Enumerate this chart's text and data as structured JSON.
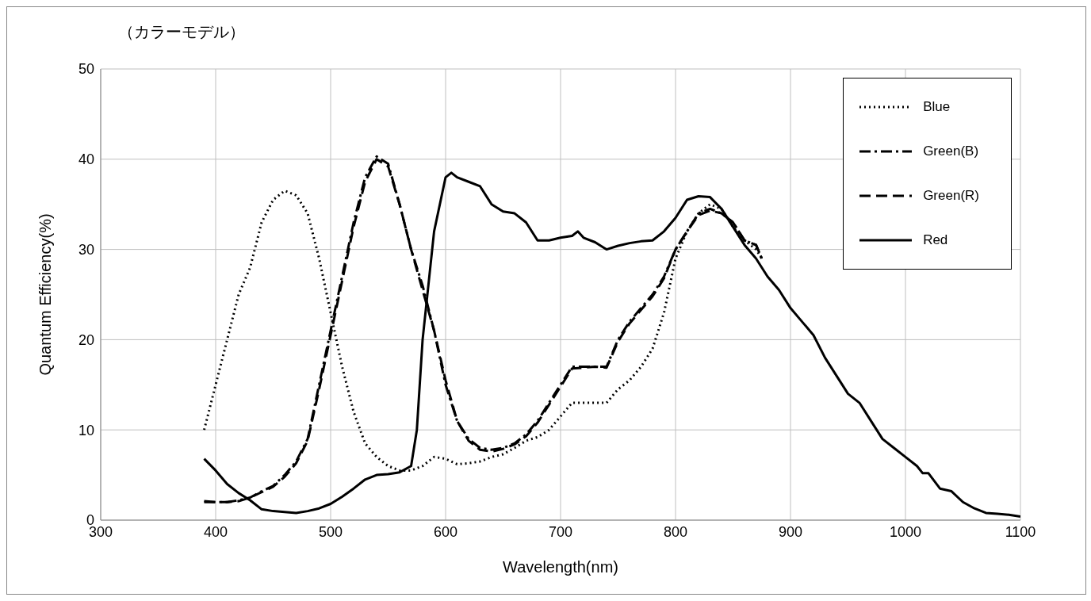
{
  "chart_data": {
    "type": "line",
    "title": "（カラーモデル）",
    "xlabel": "Wavelength(nm)",
    "ylabel": "Quantum Efficiency(%)",
    "xlim": [
      300,
      1100
    ],
    "xticks": [
      300,
      400,
      500,
      600,
      700,
      800,
      900,
      1000,
      1100
    ],
    "ylim": [
      0,
      50
    ],
    "yticks": [
      0,
      10,
      20,
      30,
      40,
      50
    ],
    "grid": true,
    "legend": "top right",
    "marker": "none",
    "series": [
      {
        "name": "Blue",
        "color": "#000000",
        "line_style": "dotted",
        "x": [
          390,
          400,
          410,
          420,
          430,
          440,
          450,
          460,
          470,
          480,
          490,
          500,
          510,
          520,
          530,
          540,
          550,
          560,
          570,
          580,
          590,
          600,
          610,
          620,
          630,
          640,
          650,
          660,
          670,
          680,
          690,
          700,
          710,
          720,
          730,
          740,
          750,
          760,
          770,
          780,
          790,
          800,
          810,
          820,
          830,
          840,
          850,
          860,
          870,
          875
        ],
        "values": [
          10,
          15,
          20,
          25,
          28,
          33,
          35.5,
          36.5,
          36,
          34,
          29,
          23,
          17,
          12,
          8.5,
          7,
          6,
          5.5,
          5.5,
          6,
          7,
          6.8,
          6.2,
          6.3,
          6.5,
          7,
          7.3,
          8,
          8.8,
          9.2,
          10,
          11.5,
          13,
          13,
          13,
          13,
          14.5,
          15.5,
          17,
          19,
          23,
          29,
          32,
          34,
          35,
          34.5,
          32.5,
          31,
          30,
          29
        ]
      },
      {
        "name": "Green(B)",
        "color": "#000000",
        "line_style": "dashdot",
        "x": [
          390,
          400,
          410,
          420,
          430,
          440,
          450,
          460,
          470,
          480,
          490,
          500,
          510,
          520,
          530,
          540,
          550,
          560,
          570,
          580,
          590,
          600,
          610,
          620,
          630,
          640,
          650,
          660,
          670,
          680,
          690,
          700,
          710,
          720,
          730,
          740,
          750,
          760,
          770,
          780,
          790,
          800,
          810,
          820,
          830,
          840,
          850,
          860,
          870,
          875
        ],
        "values": [
          2,
          2,
          2,
          2.2,
          2.5,
          3.2,
          3.8,
          5,
          6.5,
          9,
          15,
          21,
          27,
          33,
          38,
          40.3,
          39.5,
          35,
          30,
          26,
          21,
          15,
          11,
          9,
          8,
          7.8,
          8,
          8.5,
          9.5,
          11,
          13,
          15,
          17,
          17,
          17,
          17,
          20,
          22,
          23.5,
          25,
          27,
          30,
          32,
          34,
          34.5,
          34,
          33,
          31,
          30.5,
          29
        ]
      },
      {
        "name": "Green(R)",
        "color": "#000000",
        "line_style": "dashed",
        "x": [
          390,
          400,
          410,
          420,
          430,
          440,
          450,
          460,
          470,
          480,
          490,
          500,
          510,
          520,
          530,
          540,
          550,
          560,
          570,
          580,
          590,
          600,
          610,
          620,
          630,
          640,
          650,
          660,
          670,
          680,
          690,
          700,
          710,
          720,
          730,
          740,
          750,
          760,
          770,
          780,
          790,
          800,
          810,
          820,
          830,
          840,
          850,
          860,
          870,
          875
        ],
        "values": [
          2.1,
          2,
          2,
          2.1,
          2.5,
          3.1,
          3.7,
          4.8,
          6.3,
          8.8,
          14.5,
          20.5,
          26.5,
          32.5,
          37.5,
          40,
          39.2,
          35,
          30,
          25.5,
          21,
          15.5,
          11,
          8.8,
          7.8,
          7.6,
          7.9,
          8.4,
          9.3,
          10.8,
          12.8,
          14.8,
          16.8,
          16.9,
          17,
          16.9,
          19.8,
          21.8,
          23.3,
          24.8,
          26.8,
          30,
          32,
          33.8,
          34.3,
          34,
          33,
          31,
          30.5,
          29
        ]
      },
      {
        "name": "Red",
        "color": "#000000",
        "line_style": "solid",
        "x": [
          390,
          400,
          410,
          420,
          430,
          440,
          450,
          460,
          470,
          480,
          490,
          500,
          510,
          520,
          530,
          540,
          550,
          560,
          570,
          575,
          580,
          590,
          600,
          605,
          610,
          620,
          630,
          640,
          650,
          660,
          670,
          680,
          690,
          700,
          710,
          715,
          720,
          730,
          740,
          750,
          760,
          770,
          780,
          790,
          800,
          810,
          820,
          830,
          840,
          850,
          860,
          870,
          880,
          890,
          900,
          910,
          920,
          930,
          940,
          950,
          960,
          970,
          980,
          990,
          1000,
          1010,
          1015,
          1020,
          1030,
          1040,
          1050,
          1060,
          1070,
          1080,
          1090,
          1100
        ],
        "values": [
          6.8,
          5.5,
          4,
          3,
          2.2,
          1.2,
          1,
          0.9,
          0.8,
          1,
          1.3,
          1.8,
          2.6,
          3.5,
          4.5,
          5,
          5.1,
          5.3,
          6,
          10,
          20,
          32,
          38,
          38.5,
          38,
          37.5,
          37,
          35,
          34.2,
          34,
          33,
          31,
          31,
          31.3,
          31.5,
          32,
          31.3,
          30.8,
          30,
          30.4,
          30.7,
          30.9,
          31,
          32,
          33.5,
          35.5,
          35.9,
          35.8,
          34.5,
          32.5,
          30.5,
          29,
          27,
          25.5,
          23.5,
          22,
          20.5,
          18,
          16,
          14,
          13,
          11,
          9,
          8,
          7,
          6,
          5.2,
          5.2,
          3.5,
          3.2,
          2,
          1.3,
          0.8,
          0.7,
          0.6,
          0.4
        ]
      }
    ]
  }
}
